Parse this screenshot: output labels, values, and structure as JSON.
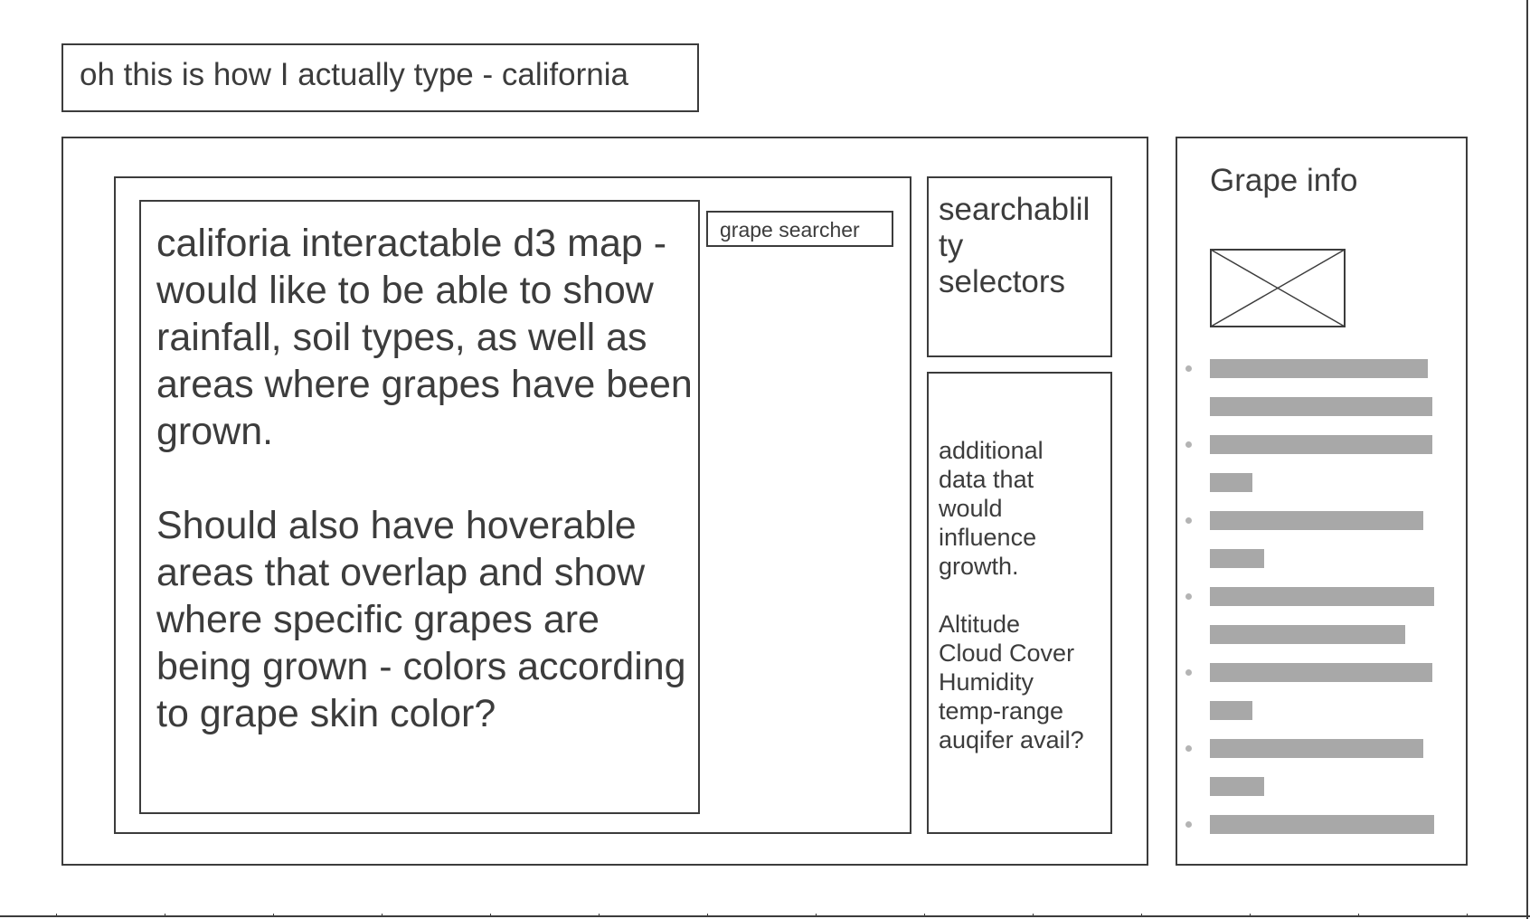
{
  "header": {
    "title": "oh this is how I actually type - california"
  },
  "map": {
    "description": "califoria interactable d3 map - would like to be able to show rainfall, soil types, as well as areas where grapes have been grown.\n\nShould also have hoverable areas that overlap and show where specific grapes are being grown - colors according to grape skin color?"
  },
  "search": {
    "label": "grape searcher"
  },
  "selectors": {
    "label": "searchablil\nty\nselectors"
  },
  "additional_data": {
    "label": "additional\ndata that\nwould\ninfluence\ngrowth.\n\nAltitude\nCloud Cover\nHumidity\ntemp-range\nauqifer avail?"
  },
  "grape_info": {
    "title": "Grape info",
    "bullets": [
      {
        "lines": [
          0.97,
          0.99
        ]
      },
      {
        "lines": [
          0.99,
          0.19
        ]
      },
      {
        "lines": [
          0.95,
          0.24
        ]
      },
      {
        "lines": [
          1.0,
          0.87
        ]
      },
      {
        "lines": [
          0.99,
          0.19
        ]
      },
      {
        "lines": [
          0.95,
          0.24
        ]
      },
      {
        "lines": [
          1.0
        ]
      }
    ]
  }
}
